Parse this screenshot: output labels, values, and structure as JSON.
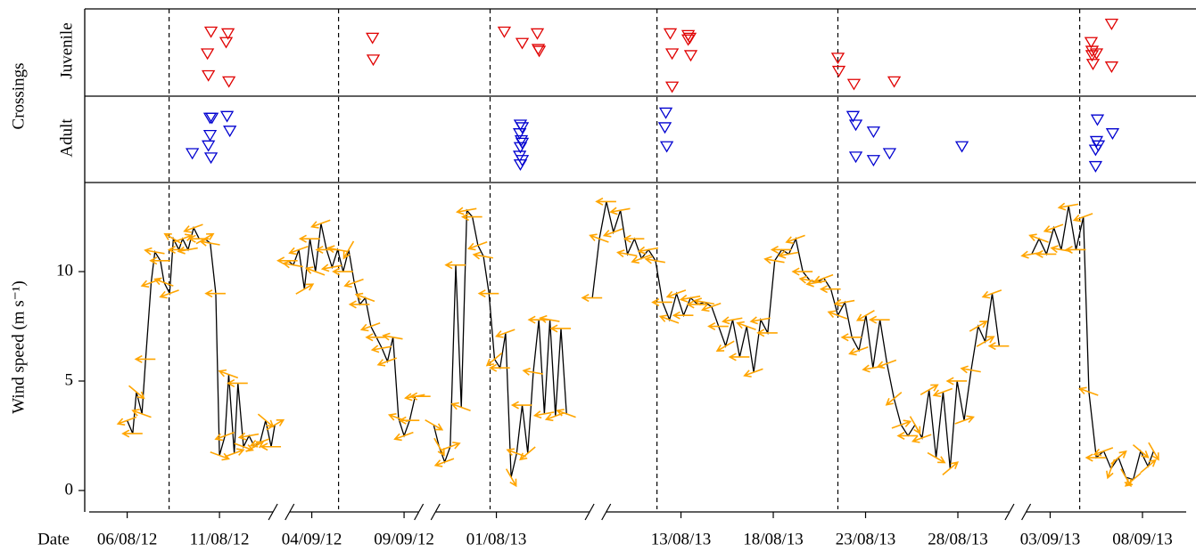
{
  "chart_data": {
    "type": "line",
    "panel_label": "Crossings",
    "x_label": "Date",
    "y_label": "Wind speed (m s⁻¹)",
    "xlim": [
      -2.3,
      57.9
    ],
    "xticks": [
      {
        "value": 0,
        "label": "06/08/12"
      },
      {
        "value": 5,
        "label": "11/08/12"
      },
      {
        "value": 10,
        "label": "04/09/12"
      },
      {
        "value": 15,
        "label": "09/09/12"
      },
      {
        "value": 20,
        "label": "01/08/13"
      },
      {
        "value": 30,
        "label": "13/08/13"
      },
      {
        "value": 35,
        "label": "18/08/13"
      },
      {
        "value": 40,
        "label": "23/08/13"
      },
      {
        "value": 45,
        "label": "28/08/13"
      },
      {
        "value": 50,
        "label": "03/09/13"
      },
      {
        "value": 55,
        "label": "08/09/13"
      }
    ],
    "x_breaks": [
      8.35,
      16.25,
      25.5,
      48.25
    ],
    "vlines": [
      2.27,
      11.45,
      19.66,
      28.7,
      38.5,
      51.6
    ],
    "ylim": [
      -0.98,
      14.07
    ],
    "yticks": [
      0,
      5,
      10
    ],
    "wind": {
      "color": "#000000",
      "arrow_color": "#ffa500",
      "x": [
        0,
        0.3,
        0.5,
        0.8,
        1.0,
        1.3,
        1.5,
        1.8,
        2.0,
        2.3,
        2.5,
        2.8,
        3.0,
        3.3,
        3.6,
        3.9,
        4.2,
        4.5,
        4.8,
        5.0,
        5.3,
        5.5,
        5.8,
        6.0,
        6.3,
        6.6,
        6.9,
        7.2,
        7.5,
        7.8,
        8.0,
        8.35,
        8.7,
        9.0,
        9.3,
        9.6,
        9.9,
        10.2,
        10.5,
        10.8,
        11.1,
        11.4,
        11.7,
        12.0,
        12.3,
        12.6,
        12.9,
        13.2,
        13.5,
        13.8,
        14.1,
        14.4,
        14.7,
        15.0,
        15.3,
        15.6,
        15.9,
        16.25,
        16.6,
        16.9,
        17.2,
        17.5,
        17.8,
        18.1,
        18.4,
        18.7,
        19.0,
        19.3,
        19.6,
        19.9,
        20.2,
        20.5,
        20.8,
        21.1,
        21.4,
        21.7,
        22.0,
        22.3,
        22.6,
        22.9,
        23.2,
        23.5,
        23.8,
        24.5,
        25.2,
        25.58,
        25.96,
        26.34,
        26.72,
        27.1,
        27.48,
        27.86,
        28.24,
        28.62,
        29.0,
        29.38,
        29.76,
        30.14,
        30.52,
        30.9,
        31.28,
        31.66,
        32.04,
        32.42,
        32.8,
        33.18,
        33.56,
        33.94,
        34.32,
        34.7,
        35.08,
        35.46,
        35.84,
        36.22,
        36.6,
        36.98,
        37.36,
        37.74,
        38.12,
        38.5,
        38.88,
        39.26,
        39.64,
        40.02,
        40.4,
        40.78,
        41.16,
        41.54,
        41.92,
        42.3,
        42.68,
        43.06,
        43.44,
        43.82,
        44.2,
        44.58,
        44.96,
        45.34,
        45.72,
        46.1,
        46.48,
        46.86,
        47.24,
        48.25,
        49.0,
        49.4,
        49.8,
        50.2,
        50.6,
        51.0,
        51.4,
        51.8,
        52.1,
        52.5,
        52.9,
        53.3,
        53.7,
        54.1,
        54.5,
        54.9,
        55.3,
        55.6
      ],
      "values": [
        3.2,
        2.6,
        4.5,
        3.5,
        6.0,
        9.5,
        10.9,
        10.5,
        9.5,
        9.0,
        11.5,
        11.0,
        11.5,
        11.0,
        12.0,
        11.5,
        11.5,
        11.3,
        9.0,
        1.6,
        2.5,
        5.3,
        1.7,
        4.9,
        2.0,
        2.5,
        2.0,
        2.2,
        3.2,
        2.0,
        3.0,
        null,
        10.5,
        10.3,
        11.0,
        9.2,
        11.5,
        10.0,
        12.2,
        11.0,
        10.2,
        11.0,
        10.0,
        11.0,
        9.5,
        8.5,
        8.8,
        7.5,
        7.0,
        6.5,
        5.9,
        7.0,
        3.3,
        2.5,
        3.2,
        4.3,
        4.3,
        null,
        3.0,
        2.0,
        1.3,
        2.0,
        10.3,
        3.8,
        12.8,
        12.5,
        11.2,
        10.7,
        9.0,
        6.0,
        5.6,
        7.2,
        0.6,
        1.7,
        3.9,
        1.7,
        5.4,
        7.8,
        3.5,
        7.8,
        3.4,
        7.4,
        3.5,
        null,
        8.8,
        11.5,
        13.2,
        11.8,
        12.8,
        10.8,
        11.5,
        10.6,
        11.0,
        10.5,
        8.6,
        7.8,
        9.0,
        8.0,
        8.8,
        8.5,
        8.6,
        8.4,
        7.5,
        6.6,
        7.8,
        6.1,
        7.5,
        5.4,
        7.8,
        7.2,
        10.5,
        11.0,
        10.8,
        11.5,
        10.0,
        9.6,
        9.5,
        9.7,
        9.2,
        8.0,
        8.6,
        7.0,
        6.4,
        8.0,
        5.6,
        7.8,
        5.8,
        4.2,
        3.0,
        2.5,
        3.0,
        2.4,
        4.6,
        1.5,
        4.5,
        1.0,
        5.0,
        3.2,
        5.5,
        7.5,
        6.8,
        9.0,
        6.6,
        null,
        10.8,
        11.5,
        10.8,
        12.0,
        11.0,
        13.0,
        11.0,
        12.5,
        4.5,
        1.5,
        1.8,
        1.0,
        1.5,
        0.6,
        0.5,
        1.8,
        1.1,
        1.8
      ],
      "direction": [
        200,
        180,
        320,
        160,
        180,
        200,
        170,
        180,
        160,
        200,
        150,
        180,
        20,
        190,
        200,
        180,
        30,
        170,
        180,
        340,
        200,
        160,
        20,
        180,
        340,
        190,
        30,
        200,
        320,
        180,
        30,
        null,
        180,
        170,
        200,
        30,
        180,
        160,
        200,
        180,
        190,
        170,
        180,
        240,
        200,
        180,
        160,
        200,
        180,
        190,
        200,
        170,
        160,
        200,
        180,
        190,
        180,
        null,
        330,
        300,
        200,
        20,
        180,
        160,
        190,
        180,
        200,
        170,
        180,
        220,
        180,
        200,
        300,
        160,
        180,
        220,
        170,
        180,
        190,
        170,
        200,
        180,
        160,
        null,
        180,
        160,
        180,
        200,
        190,
        170,
        180,
        200,
        190,
        170,
        180,
        160,
        200,
        180,
        190,
        180,
        170,
        200,
        180,
        210,
        190,
        180,
        160,
        200,
        190,
        180,
        170,
        180,
        190,
        200,
        180,
        170,
        190,
        200,
        180,
        160,
        190,
        180,
        200,
        210,
        190,
        180,
        200,
        220,
        20,
        180,
        300,
        200,
        30,
        330,
        200,
        40,
        180,
        20,
        170,
        30,
        30,
        200,
        180,
        null,
        190,
        160,
        180,
        200,
        170,
        190,
        180,
        200,
        160,
        180,
        200,
        250,
        40,
        300,
        220,
        320,
        40,
        300
      ]
    },
    "crossings": [
      {
        "name": "Juvenile",
        "color": "#e00000",
        "ylim": [
          0,
          1
        ],
        "x": [
          4.54,
          5.46,
          5.36,
          4.35,
          4.4,
          5.51,
          13.29,
          13.33,
          20.43,
          21.4,
          22.22,
          22.27,
          22.32,
          29.42,
          30.39,
          30.39,
          30.48,
          29.52,
          30.53,
          29.52,
          38.5,
          38.55,
          39.37,
          41.55,
          52.22,
          52.27,
          52.27,
          52.32,
          52.51,
          53.33,
          53.33
        ],
        "y": [
          0.74,
          0.72,
          0.62,
          0.49,
          0.24,
          0.17,
          0.67,
          0.42,
          0.74,
          0.61,
          0.72,
          0.54,
          0.52,
          0.72,
          0.7,
          0.65,
          0.67,
          0.49,
          0.47,
          0.11,
          0.44,
          0.29,
          0.14,
          0.17,
          0.62,
          0.52,
          0.47,
          0.37,
          0.49,
          0.83,
          0.34
        ]
      },
      {
        "name": "Adult",
        "color": "#0000d0",
        "ylim": [
          0,
          1
        ],
        "x": [
          3.53,
          4.49,
          4.59,
          5.41,
          4.49,
          4.4,
          4.54,
          5.56,
          21.3,
          21.4,
          21.26,
          21.35,
          21.3,
          21.4,
          21.26,
          21.3,
          21.4,
          29.18,
          29.13,
          29.23,
          39.32,
          39.47,
          40.43,
          39.47,
          40.43,
          41.3,
          45.22,
          52.56,
          52.51,
          52.61,
          52.46,
          53.38,
          52.46
        ],
        "y": [
          0.34,
          0.75,
          0.75,
          0.77,
          0.55,
          0.43,
          0.29,
          0.6,
          0.67,
          0.64,
          0.57,
          0.49,
          0.41,
          0.46,
          0.31,
          0.21,
          0.26,
          0.81,
          0.64,
          0.42,
          0.77,
          0.67,
          0.59,
          0.3,
          0.26,
          0.34,
          0.42,
          0.73,
          0.48,
          0.43,
          0.38,
          0.57,
          0.19
        ]
      }
    ]
  }
}
